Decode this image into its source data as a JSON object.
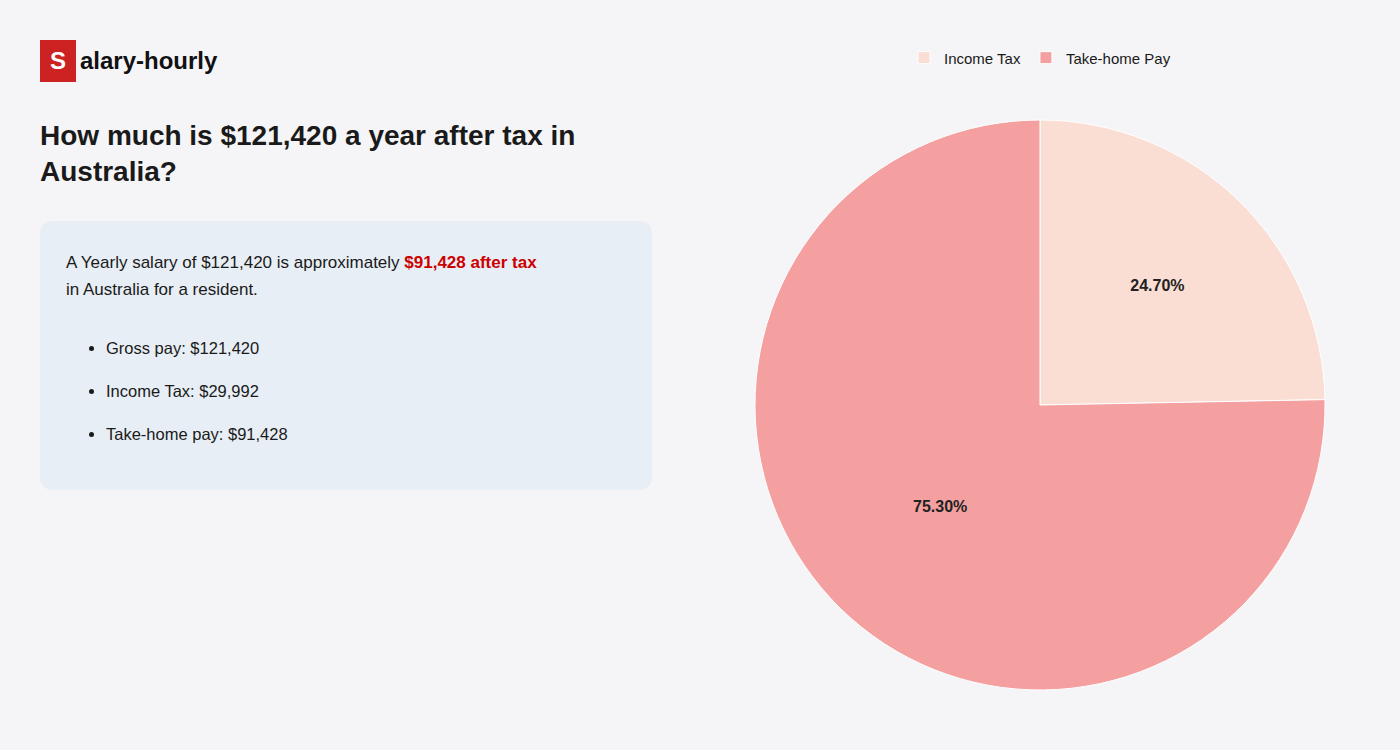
{
  "chart_data": {
    "type": "pie",
    "title": "How much is $121,420 a year after tax in Australia?",
    "annotations": [
      "S",
      "alary-hourly",
      "A Yearly salary of $121,420 is approximately ",
      "$91,428 after tax",
      "in Australia for a resident.",
      "Gross pay: $121,420",
      "Income Tax: $29,992",
      "Take-home pay: $91,428"
    ],
    "categories": [
      "Income Tax",
      "Take-home Pay"
    ],
    "values": [
      24.7,
      75.3
    ],
    "value_labels": [
      "24.70%",
      "75.30%"
    ],
    "colors": [
      "#faddd3",
      "#f4a0a0"
    ],
    "data_labels": true,
    "legend": "top"
  }
}
